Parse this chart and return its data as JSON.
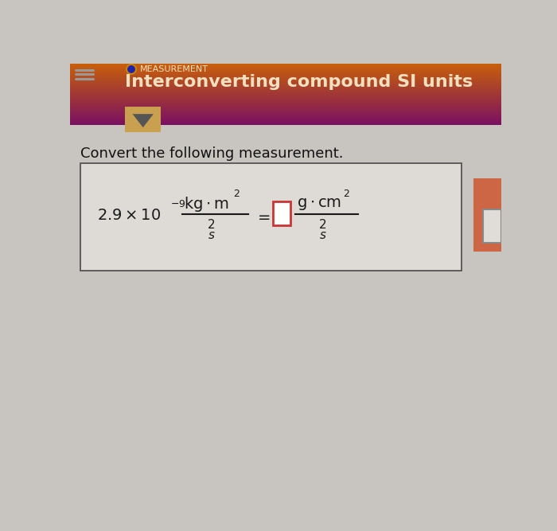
{
  "bg_color": "#c8c5c0",
  "header_color_top": "#7a1060",
  "header_color_bottom": "#c8600a",
  "header_text_color": "#f0e0c0",
  "measurement_label": "MEASUREMENT",
  "title_text": "Interconverting compound SI units",
  "subtitle": "Convert the following measurement.",
  "subtitle_color": "#111111",
  "box_bg": "#dedad5",
  "box_border": "#555555",
  "formula_color": "#1a1a1a",
  "answer_box_color": "#cc3333",
  "left_hamburger_color": "#999999",
  "circle_color": "#cc8800",
  "circle_inner_color": "#2222aa",
  "dropdown_bg": "#c8a050",
  "dropdown_arrow": "#555555",
  "right_box_color": "#cc4400",
  "right_box_bg": "#cc6644"
}
